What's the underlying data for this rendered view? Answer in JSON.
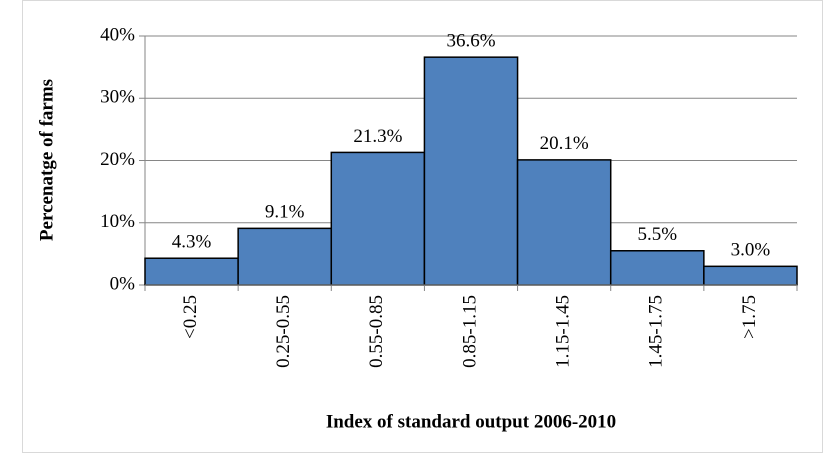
{
  "chart_data": {
    "type": "bar",
    "y_label": "Percenatge of farms",
    "x_label": "Index of standard output 2006-2010",
    "categories": [
      "<0.25",
      "0.25-0.55",
      "0.55-0.85",
      "0.85-1.15",
      "1.15-1.45",
      "1.45-1.75",
      ">1.75"
    ],
    "values": [
      4.3,
      9.1,
      21.3,
      36.6,
      20.1,
      5.5,
      3.0
    ],
    "value_labels": [
      "4.3%",
      "9.1%",
      "21.3%",
      "36.6%",
      "20.1%",
      "5.5%",
      "3.0%"
    ],
    "color": "#4f81bd",
    "ylim": [
      0,
      40
    ],
    "yticks": [
      {
        "value": 0,
        "label": "0%"
      },
      {
        "value": 10,
        "label": "10%"
      },
      {
        "value": 20,
        "label": "20%"
      },
      {
        "value": 30,
        "label": "30%"
      },
      {
        "value": 40,
        "label": "40%"
      }
    ],
    "grid": true
  }
}
